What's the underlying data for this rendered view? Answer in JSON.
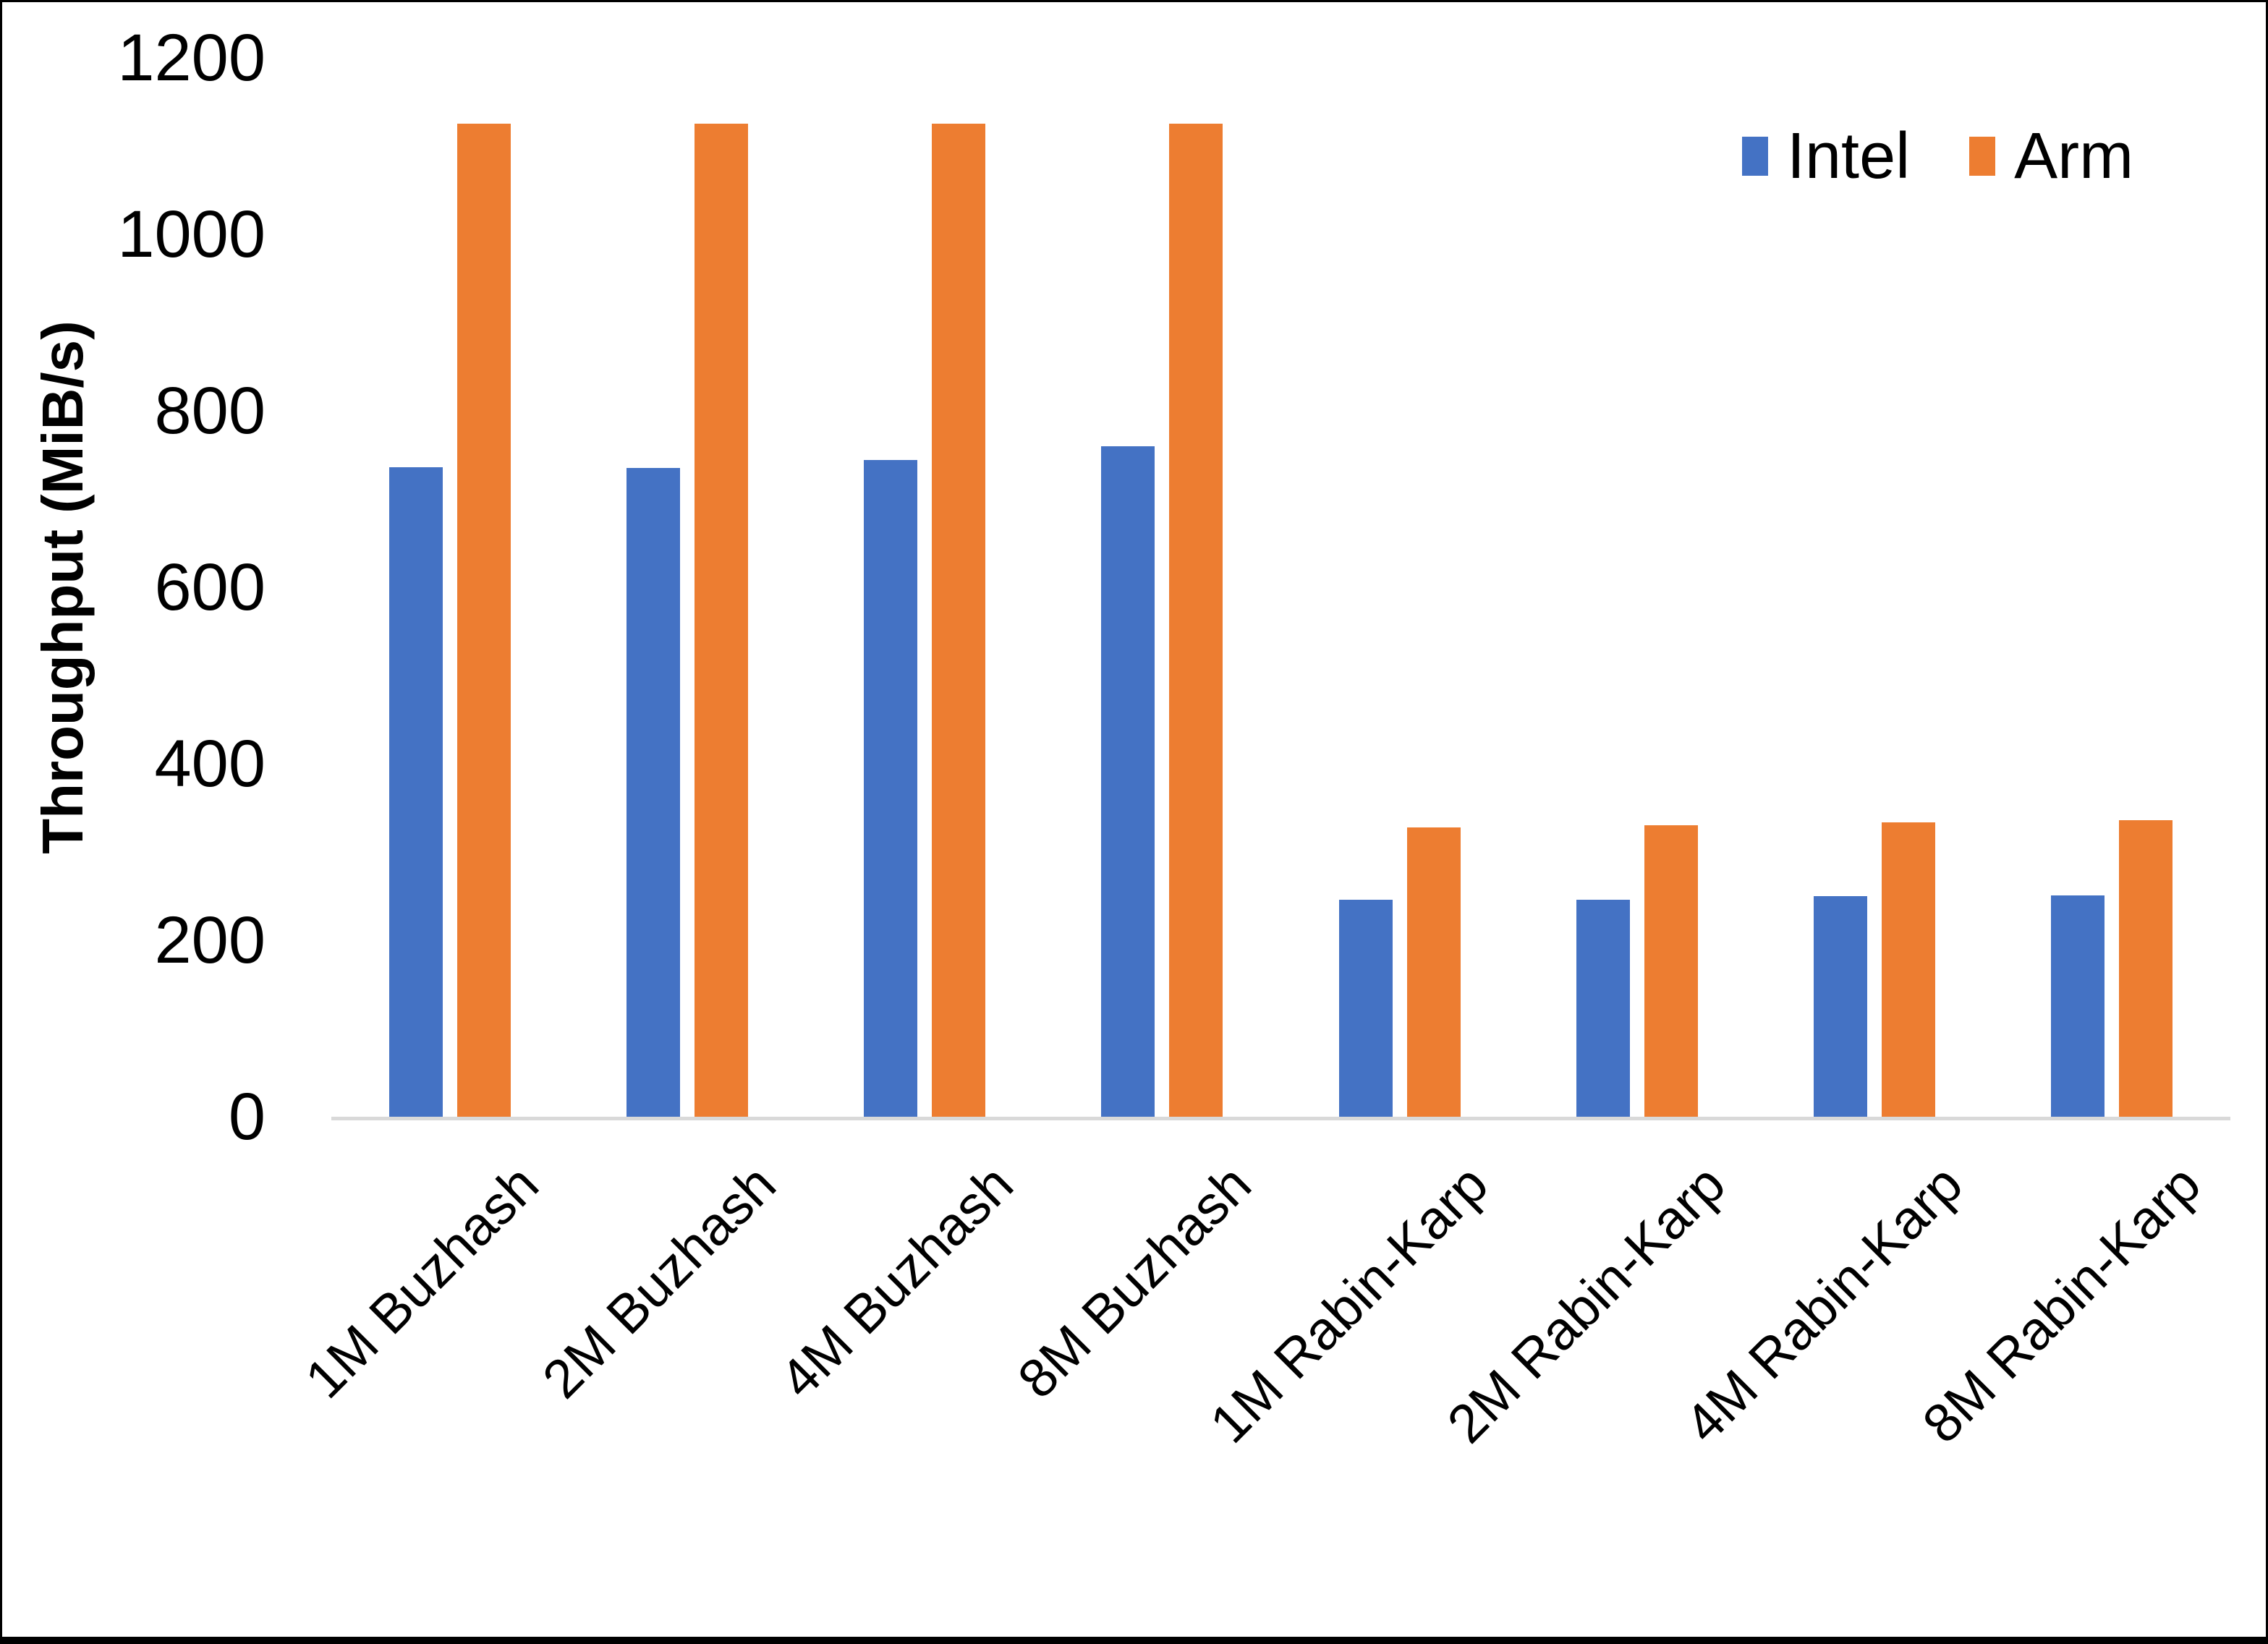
{
  "window": {
    "background": "#ffffff",
    "frame_color": "#000000"
  },
  "chart_data": {
    "type": "bar",
    "title": "",
    "xlabel": "",
    "ylabel": "Throughput (MiB/s)",
    "categories": [
      "1M Buzhash",
      "2M Buzhash",
      "4M Buzhash",
      "8M Buzhash",
      "1M Rabin-Karp",
      "2M Rabin-Karp",
      "4M Rabin-Karp",
      "8M Rabin-Karp"
    ],
    "series": [
      {
        "name": "Intel",
        "color": "#4472C4",
        "values": [
          736,
          735,
          744,
          760,
          246,
          246,
          250,
          251
        ]
      },
      {
        "name": "Arm",
        "color": "#ED7D31",
        "values": [
          1125,
          1125,
          1125,
          1125,
          328,
          330,
          334,
          336
        ]
      }
    ],
    "ylim": [
      0,
      1200
    ],
    "yticks": [
      0,
      200,
      400,
      600,
      800,
      1000,
      1200
    ],
    "grid": false,
    "legend_position": "top-right",
    "axis_line_color": "#D9D9D9",
    "text_color": "#000000"
  }
}
